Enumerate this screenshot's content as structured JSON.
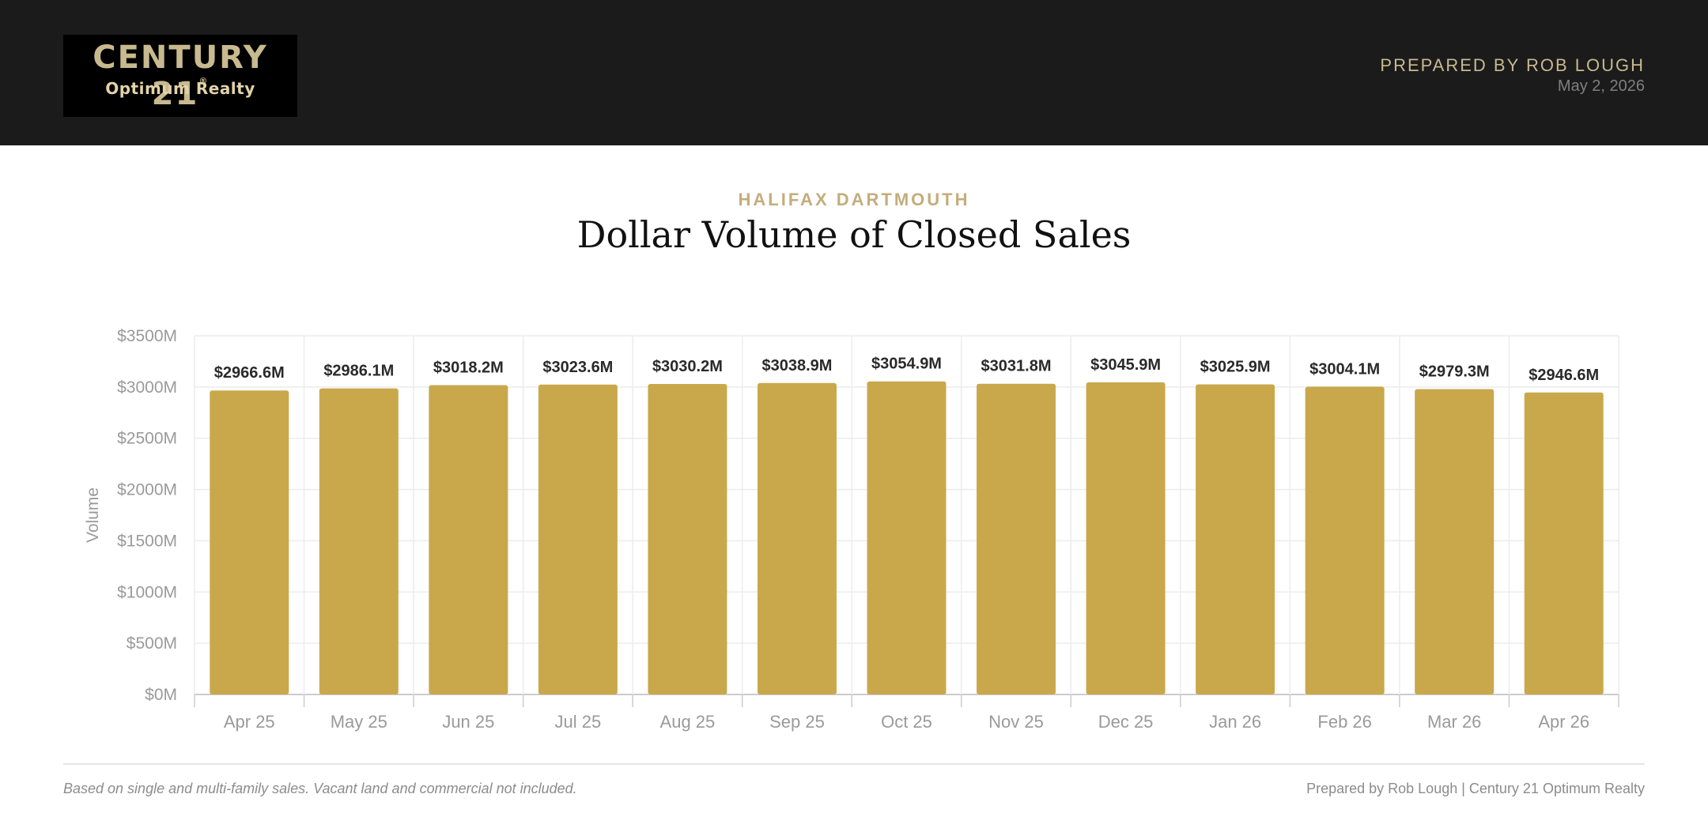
{
  "header": {
    "logo_main": "CENTURY 21",
    "logo_reg": "®",
    "logo_sub": "Optimum Realty",
    "prepared_by": "PREPARED BY ROB LOUGH",
    "date": "May 2, 2026"
  },
  "report": {
    "region": "HALIFAX DARTMOUTH",
    "title": "Dollar Volume of Closed Sales"
  },
  "footer": {
    "note": "Based on single and multi-family sales. Vacant land and commercial not included.",
    "credit": "Prepared by Rob Lough | Century 21 Optimum Realty"
  },
  "colors": {
    "bar": "#c9a84c",
    "header_bg": "#1b1b1b",
    "accent": "#c3ad7c"
  },
  "chart_data": {
    "type": "bar",
    "ylabel": "Volume",
    "ylim": [
      0,
      3500
    ],
    "y_ticks": [
      0,
      500,
      1000,
      1500,
      2000,
      2500,
      3000,
      3500
    ],
    "y_tick_labels": [
      "$0M",
      "$500M",
      "$1000M",
      "$1500M",
      "$2000M",
      "$2500M",
      "$3000M",
      "$3500M"
    ],
    "grid": true,
    "categories": [
      "Apr 25",
      "May 25",
      "Jun 25",
      "Jul 25",
      "Aug 25",
      "Sep 25",
      "Oct 25",
      "Nov 25",
      "Dec 25",
      "Jan 26",
      "Feb 26",
      "Mar 26",
      "Apr 26"
    ],
    "values": [
      2966.6,
      2986.1,
      3018.2,
      3023.6,
      3030.2,
      3038.9,
      3054.9,
      3031.8,
      3045.9,
      3025.9,
      3004.1,
      2979.3,
      2946.6
    ],
    "data_labels": [
      "$2966.6M",
      "$2986.1M",
      "$3018.2M",
      "$3023.6M",
      "$3030.2M",
      "$3038.9M",
      "$3054.9M",
      "$3031.8M",
      "$3045.9M",
      "$3025.9M",
      "$3004.1M",
      "$2979.3M",
      "$2946.6M"
    ]
  }
}
